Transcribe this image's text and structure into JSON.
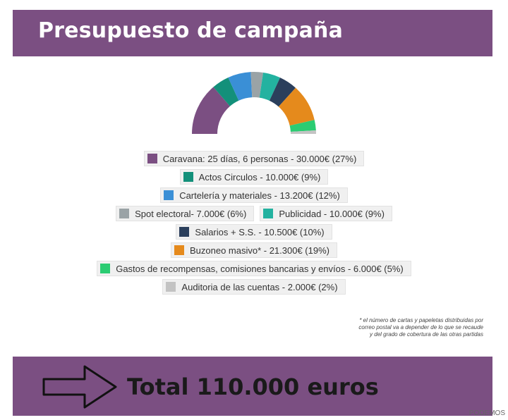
{
  "header": {
    "title": "Presupuesto de campaña"
  },
  "chart_data": {
    "type": "pie",
    "shape": "half-donut",
    "title": "Presupuesto de campaña",
    "series": [
      {
        "name": "Caravana: 25 días, 6 personas",
        "amount_label": "30.000€",
        "value": 30000,
        "percent": 27,
        "color": "#7b4f82"
      },
      {
        "name": "Actos Circulos",
        "amount_label": "10.000€",
        "value": 10000,
        "percent": 9,
        "color": "#13907a"
      },
      {
        "name": "Cartelería y materiales",
        "amount_label": "13.200€",
        "value": 13200,
        "percent": 12,
        "color": "#3a8fd6"
      },
      {
        "name": "Spot electoral",
        "amount_label": "7.000€",
        "value": 7000,
        "percent": 6,
        "color": "#9aa3a6"
      },
      {
        "name": "Publicidad",
        "amount_label": "10.000€",
        "value": 10000,
        "percent": 9,
        "color": "#23b2a0"
      },
      {
        "name": "Salarios + S.S.",
        "amount_label": "10.500€",
        "value": 10500,
        "percent": 10,
        "color": "#2b3f5c"
      },
      {
        "name": "Buzoneo masivo*",
        "amount_label": "21.300€",
        "value": 21300,
        "percent": 19,
        "color": "#e58a1c"
      },
      {
        "name": "Gastos de recompensas, comisiones bancarias y envíos",
        "amount_label": "6.000€",
        "value": 6000,
        "percent": 5,
        "color": "#2bcc72"
      },
      {
        "name": "Auditoria de las cuentas",
        "amount_label": "2.000€",
        "value": 2000,
        "percent": 2,
        "color": "#c3c3c3"
      }
    ],
    "legend_text": [
      "Caravana: 25 días, 6 personas - 30.000€ (27%)",
      "Actos Circulos - 10.000€ (9%)",
      "Cartelería y materiales - 13.200€ (12%)",
      "Spot electoral- 7.000€ (6%)",
      "Publicidad - 10.000€ (9%)",
      "Salarios + S.S. - 10.500€ (10%)",
      "Buzoneo masivo* - 21.300€ (19%)",
      "Gastos de recompensas, comisiones bancarias y envíos - 6.000€ (5%)",
      "Auditoria de las cuentas - 2.000€ (2%)"
    ],
    "legend_placement": "bottom"
  },
  "footnote": {
    "line1": "* el número de cartas y papeletas distribuidas por",
    "line2": "correo postal va a depender de lo que se recaude",
    "line3": "y del grado de cobertura de las otras partidas"
  },
  "footer": {
    "total": "Total 110.000 euros"
  },
  "watermark": "PODEMOS"
}
